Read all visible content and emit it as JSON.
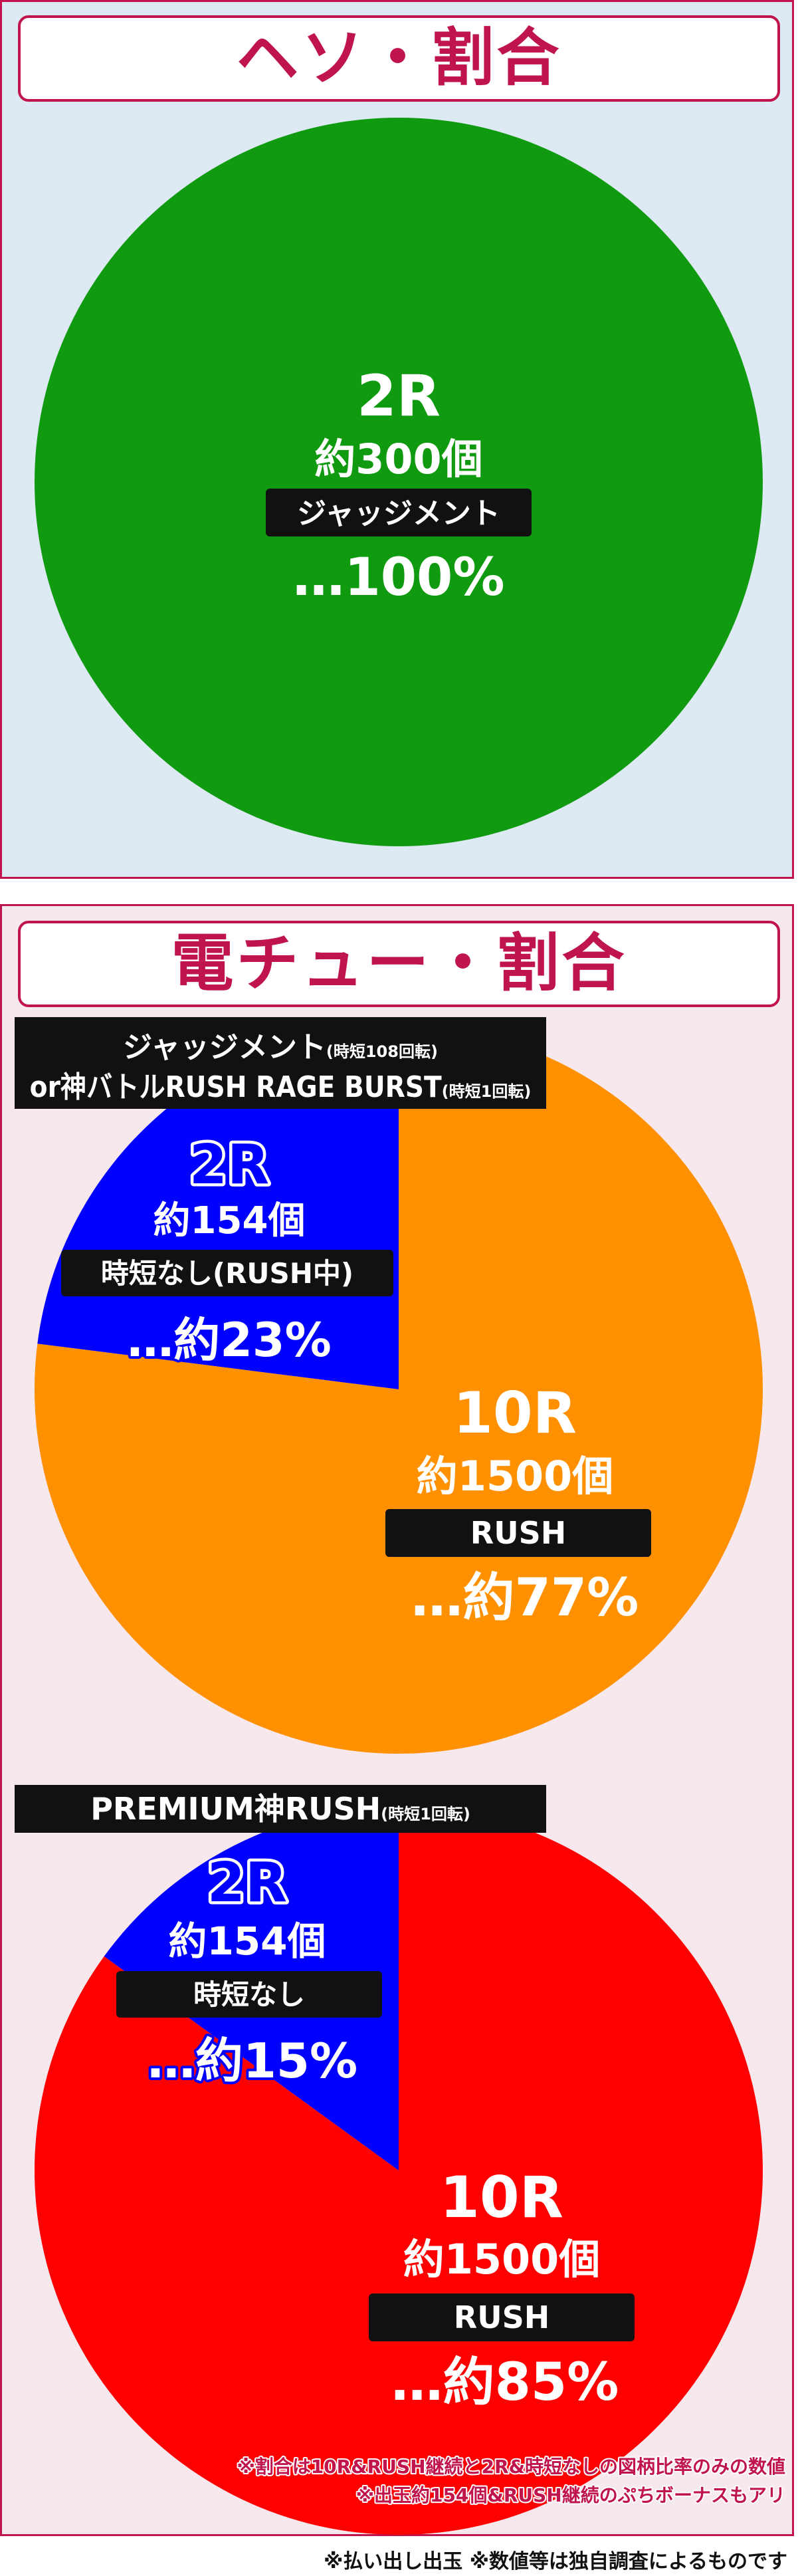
{
  "colors": {
    "accent": "#c0144c",
    "panel1_bg": "#dde9f3",
    "panel2_bg": "#f7e8ee",
    "green": "#0f9a10",
    "orange": "#ff9000",
    "red": "#ff0000",
    "blue": "#0000ff",
    "label_bg": "#111111"
  },
  "section1": {
    "title": "ヘソ・割合"
  },
  "section2": {
    "title": "電チュー・割合"
  },
  "chart_data": [
    {
      "type": "pie",
      "slices": [
        {
          "round": "2R",
          "balls": "約300個",
          "label": "ジャッジメント",
          "percent_text": "…100%",
          "value": 100,
          "color": "#0f9a10"
        }
      ]
    },
    {
      "type": "pie",
      "header_line1_main": "ジャッジメント",
      "header_line1_sub": "(時短108回転)",
      "header_line2_main": "or神バトルRUSH RAGE BURST",
      "header_line2_sub": "(時短1回転)",
      "slices": [
        {
          "round": "2R",
          "balls": "約154個",
          "label": "時短なし(RUSH中)",
          "percent_text": "…約23%",
          "value": 23,
          "color": "#0000ff"
        },
        {
          "round": "10R",
          "balls": "約1500個",
          "label": "RUSH",
          "percent_text": "…約77%",
          "value": 77,
          "color": "#ff9000"
        }
      ]
    },
    {
      "type": "pie",
      "header_main": "PREMIUM神RUSH",
      "header_sub": "(時短1回転)",
      "slices": [
        {
          "round": "2R",
          "balls": "約154個",
          "label": "時短なし",
          "percent_text": "…約15%",
          "value": 15,
          "color": "#0000ff"
        },
        {
          "round": "10R",
          "balls": "約1500個",
          "label": "RUSH",
          "percent_text": "…約85%",
          "value": 85,
          "color": "#ff0000"
        }
      ]
    }
  ],
  "notes": [
    "※割合は10R&RUSH継続と2R&時短なしの図柄比率のみの数値",
    "※出玉約154個&RUSH継続のぷちボーナスもアリ"
  ],
  "footer": "※払い出し出玉 ※数値等は独自調査によるものです"
}
